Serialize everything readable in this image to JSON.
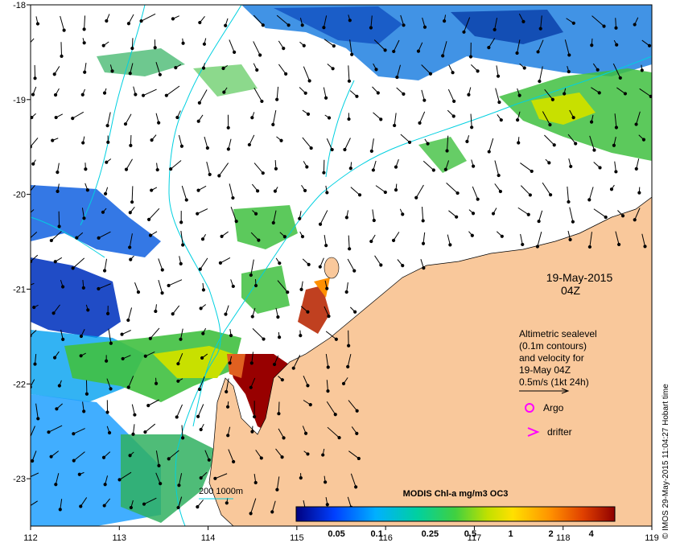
{
  "map": {
    "date": "19-May-2015",
    "time": "04Z",
    "lon_ticks": [
      "112",
      "113",
      "114",
      "115",
      "116",
      "117",
      "118",
      "119"
    ],
    "lat_ticks": [
      "-18",
      "-19",
      "-20",
      "-21",
      "-22",
      "-23"
    ],
    "lon_range": [
      112,
      119
    ],
    "lat_range": [
      -23.5,
      -18
    ],
    "altimetry": {
      "line1": "Altimetric sealevel",
      "line2": "(0.1m contours)",
      "line3": "and velocity for",
      "line4": "19-May 04Z",
      "line5": "0.5m/s (1kt 24h)"
    },
    "argo_label": "Argo",
    "drifter_label": "drifter",
    "isobath_label": "200  1000m",
    "colorbar": {
      "title": "MODIS Chl-a mg/m3 OC3",
      "labels": [
        "0.05",
        "0.1",
        "0.25",
        "0.5",
        "1",
        "2",
        "4"
      ],
      "colors": [
        "#000080",
        "#0040ff",
        "#00b0ff",
        "#00d0a0",
        "#40d040",
        "#c0e000",
        "#ffe000",
        "#ff9000",
        "#e04000",
        "#900000"
      ]
    },
    "credit": "© IMOS 29-May-2015 11:04:27 Hobart time",
    "land_color": "#f9c89b",
    "contour_color": "#00d0e0",
    "argo_color": "#ff00ff"
  }
}
